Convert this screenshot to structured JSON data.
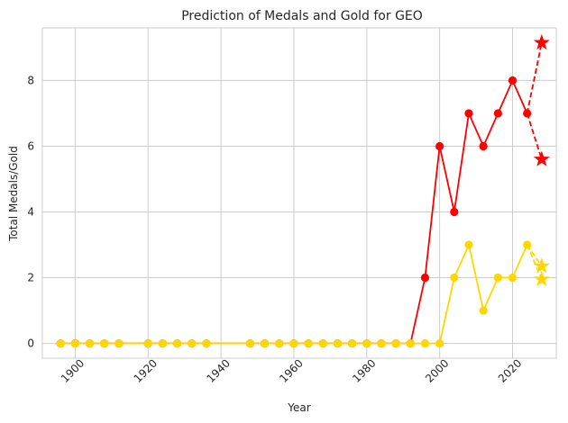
{
  "chart_data": {
    "type": "line",
    "title": "Prediction of Medals and Gold for GEO",
    "xlabel": "Year",
    "ylabel": "Total Medals/Gold",
    "xlim": [
      1891,
      2032
    ],
    "ylim": [
      -0.45,
      9.6
    ],
    "grid": true,
    "xticks": [
      1900,
      1920,
      1940,
      1960,
      1980,
      2000,
      2020
    ],
    "yticks": [
      0,
      2,
      4,
      6,
      8
    ],
    "series": [
      {
        "id": "medals",
        "color": "#ff0000",
        "x": [
          1896,
          1900,
          1904,
          1908,
          1912,
          1920,
          1924,
          1928,
          1932,
          1936,
          1948,
          1952,
          1956,
          1960,
          1964,
          1968,
          1972,
          1976,
          1980,
          1984,
          1988,
          1992,
          1996,
          2000,
          2004,
          2008,
          2012,
          2016,
          2020,
          2024
        ],
        "values": [
          0,
          0,
          0,
          0,
          0,
          0,
          0,
          0,
          0,
          0,
          0,
          0,
          0,
          0,
          0,
          0,
          0,
          0,
          0,
          0,
          0,
          0,
          2,
          6,
          4,
          7,
          6,
          7,
          8,
          7
        ]
      },
      {
        "id": "gold",
        "color": "#ffd700",
        "x": [
          1896,
          1900,
          1904,
          1908,
          1912,
          1920,
          1924,
          1928,
          1932,
          1936,
          1948,
          1952,
          1956,
          1960,
          1964,
          1968,
          1972,
          1976,
          1980,
          1984,
          1988,
          1992,
          1996,
          2000,
          2004,
          2008,
          2012,
          2016,
          2020,
          2024
        ],
        "values": [
          0,
          0,
          0,
          0,
          0,
          0,
          0,
          0,
          0,
          0,
          0,
          0,
          0,
          0,
          0,
          0,
          0,
          0,
          0,
          0,
          0,
          0,
          0,
          0,
          2,
          3,
          1,
          2,
          2,
          3
        ]
      }
    ],
    "predictions": [
      {
        "id": "medals-upper",
        "color": "#ff0000",
        "from": [
          2024,
          7
        ],
        "to": [
          2028,
          9.15
        ]
      },
      {
        "id": "medals-lower",
        "color": "#ff0000",
        "from": [
          2024,
          7
        ],
        "to": [
          2028,
          5.6
        ]
      },
      {
        "id": "gold-upper",
        "color": "#ffd700",
        "from": [
          2024,
          3
        ],
        "to": [
          2028,
          2.35
        ]
      },
      {
        "id": "gold-lower",
        "color": "#ffd700",
        "from": [
          2024,
          3
        ],
        "to": [
          2028,
          1.95
        ]
      }
    ]
  }
}
